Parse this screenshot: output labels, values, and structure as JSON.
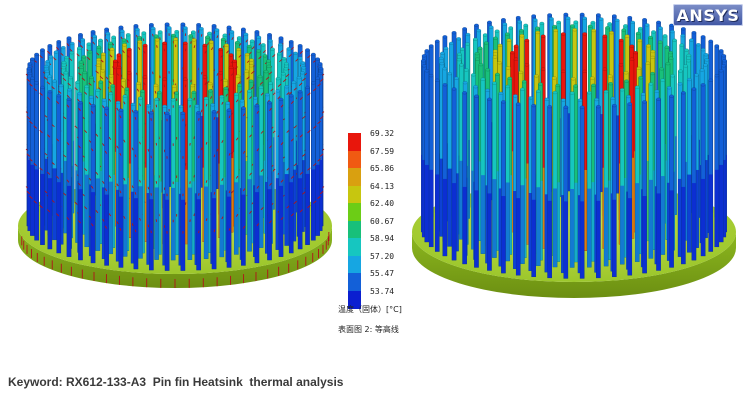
{
  "legend": {
    "values": [
      "69.32",
      "67.59",
      "65.86",
      "64.13",
      "62.40",
      "60.67",
      "58.94",
      "57.20",
      "55.47",
      "53.74"
    ],
    "colors": [
      "#e8160c",
      "#f05a12",
      "#d9a010",
      "#c7c60f",
      "#6ccd16",
      "#18c07a",
      "#16c6c0",
      "#16a6e2",
      "#1360d8",
      "#0b1fd0"
    ],
    "quantity_label": "温度（固体）[°C]",
    "plot_label": "表面图 2: 等高线"
  },
  "logo": {
    "text": "ANSYS"
  },
  "caption": {
    "text": "Keyword: RX612-133-A3  Pin fin Heatsink  thermal analysis"
  }
}
